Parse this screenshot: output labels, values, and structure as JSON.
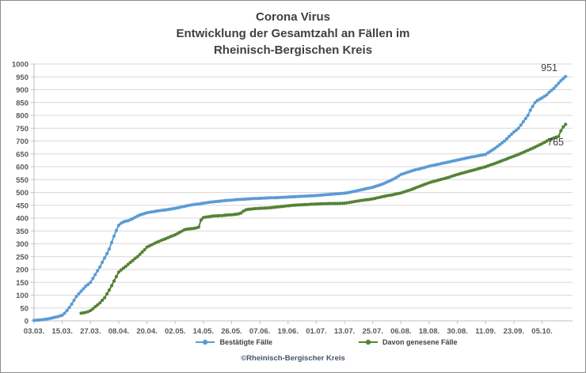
{
  "title": {
    "lines": [
      "Corona Virus",
      "Entwicklung der Gesamtzahl an Fällen im",
      "Rheinisch-Bergischen Kreis"
    ]
  },
  "footer": "©Rheinisch-Bergischer Kreis",
  "chart_data": {
    "type": "line",
    "title": "Corona Virus - Entwicklung der Gesamtzahl an Fällen im Rheinisch-Bergischen Kreis",
    "xlabel": "",
    "ylabel": "",
    "grid": "horizontal",
    "legend_position": "bottom",
    "y_axis": {
      "min": 0,
      "max": 1000,
      "step": 50
    },
    "x_tick_labels": [
      "03.03.",
      "15.03.",
      "27.03.",
      "08.04.",
      "20.04.",
      "02.05.",
      "14.05.",
      "26.05.",
      "07.06.",
      "19.06.",
      "01.07.",
      "13.07.",
      "25.07.",
      "06.08.",
      "18.08.",
      "30.08.",
      "11.09.",
      "23.09.",
      "05.10."
    ],
    "x_days_per_tick": 12,
    "series": [
      {
        "name": "Bestätigte Fälle",
        "color": "#5b9bd5",
        "end_label": "951",
        "points": [
          [
            0,
            2
          ],
          [
            2,
            3
          ],
          [
            4,
            5
          ],
          [
            6,
            8
          ],
          [
            8,
            12
          ],
          [
            10,
            16
          ],
          [
            12,
            22
          ],
          [
            13,
            30
          ],
          [
            14,
            40
          ],
          [
            15,
            52
          ],
          [
            16,
            65
          ],
          [
            17,
            80
          ],
          [
            18,
            95
          ],
          [
            19,
            105
          ],
          [
            20,
            115
          ],
          [
            21,
            125
          ],
          [
            22,
            135
          ],
          [
            23,
            142
          ],
          [
            24,
            150
          ],
          [
            25,
            165
          ],
          [
            26,
            180
          ],
          [
            27,
            195
          ],
          [
            28,
            210
          ],
          [
            29,
            228
          ],
          [
            30,
            245
          ],
          [
            31,
            262
          ],
          [
            32,
            280
          ],
          [
            33,
            305
          ],
          [
            34,
            330
          ],
          [
            35,
            352
          ],
          [
            36,
            372
          ],
          [
            37,
            380
          ],
          [
            38,
            385
          ],
          [
            39,
            388
          ],
          [
            40,
            390
          ],
          [
            41,
            394
          ],
          [
            42,
            398
          ],
          [
            43,
            403
          ],
          [
            44,
            408
          ],
          [
            45,
            412
          ],
          [
            46,
            415
          ],
          [
            47,
            418
          ],
          [
            48,
            421
          ],
          [
            50,
            424
          ],
          [
            52,
            427
          ],
          [
            54,
            430
          ],
          [
            56,
            432
          ],
          [
            58,
            435
          ],
          [
            60,
            438
          ],
          [
            62,
            442
          ],
          [
            64,
            446
          ],
          [
            66,
            450
          ],
          [
            68,
            453
          ],
          [
            70,
            455
          ],
          [
            72,
            458
          ],
          [
            74,
            461
          ],
          [
            76,
            463
          ],
          [
            78,
            465
          ],
          [
            80,
            467
          ],
          [
            82,
            469
          ],
          [
            84,
            470
          ],
          [
            86,
            472
          ],
          [
            88,
            473
          ],
          [
            90,
            474
          ],
          [
            93,
            476
          ],
          [
            96,
            477
          ],
          [
            100,
            479
          ],
          [
            104,
            480
          ],
          [
            108,
            482
          ],
          [
            112,
            484
          ],
          [
            116,
            486
          ],
          [
            120,
            488
          ],
          [
            124,
            491
          ],
          [
            128,
            494
          ],
          [
            132,
            497
          ],
          [
            134,
            500
          ],
          [
            136,
            504
          ],
          [
            138,
            508
          ],
          [
            140,
            512
          ],
          [
            142,
            516
          ],
          [
            144,
            520
          ],
          [
            146,
            526
          ],
          [
            148,
            532
          ],
          [
            150,
            540
          ],
          [
            152,
            548
          ],
          [
            154,
            558
          ],
          [
            156,
            570
          ],
          [
            158,
            576
          ],
          [
            160,
            582
          ],
          [
            162,
            588
          ],
          [
            164,
            592
          ],
          [
            166,
            597
          ],
          [
            168,
            602
          ],
          [
            170,
            606
          ],
          [
            172,
            610
          ],
          [
            174,
            614
          ],
          [
            176,
            618
          ],
          [
            178,
            622
          ],
          [
            180,
            626
          ],
          [
            182,
            630
          ],
          [
            184,
            634
          ],
          [
            186,
            638
          ],
          [
            188,
            641
          ],
          [
            190,
            645
          ],
          [
            192,
            648
          ],
          [
            194,
            660
          ],
          [
            196,
            672
          ],
          [
            198,
            686
          ],
          [
            200,
            700
          ],
          [
            202,
            718
          ],
          [
            204,
            735
          ],
          [
            205,
            742
          ],
          [
            206,
            750
          ],
          [
            208,
            775
          ],
          [
            210,
            800
          ],
          [
            211,
            820
          ],
          [
            213,
            850
          ],
          [
            214,
            858
          ],
          [
            216,
            868
          ],
          [
            218,
            880
          ],
          [
            219,
            890
          ],
          [
            221,
            905
          ],
          [
            222,
            915
          ],
          [
            223,
            925
          ],
          [
            224,
            935
          ],
          [
            225,
            943
          ],
          [
            226,
            951
          ]
        ]
      },
      {
        "name": "Davon genesene Fälle",
        "color": "#548235",
        "end_label": "765",
        "points": [
          [
            20,
            30
          ],
          [
            21,
            31
          ],
          [
            22,
            33
          ],
          [
            23,
            36
          ],
          [
            24,
            40
          ],
          [
            25,
            47
          ],
          [
            26,
            55
          ],
          [
            27,
            62
          ],
          [
            28,
            70
          ],
          [
            29,
            80
          ],
          [
            30,
            90
          ],
          [
            31,
            105
          ],
          [
            32,
            120
          ],
          [
            33,
            137
          ],
          [
            34,
            155
          ],
          [
            35,
            172
          ],
          [
            36,
            190
          ],
          [
            37,
            198
          ],
          [
            38,
            205
          ],
          [
            39,
            212
          ],
          [
            40,
            220
          ],
          [
            41,
            228
          ],
          [
            42,
            235
          ],
          [
            43,
            243
          ],
          [
            44,
            250
          ],
          [
            45,
            259
          ],
          [
            46,
            268
          ],
          [
            47,
            277
          ],
          [
            48,
            287
          ],
          [
            50,
            296
          ],
          [
            52,
            305
          ],
          [
            54,
            313
          ],
          [
            56,
            320
          ],
          [
            58,
            328
          ],
          [
            60,
            335
          ],
          [
            61,
            340
          ],
          [
            62,
            345
          ],
          [
            63,
            350
          ],
          [
            64,
            355
          ],
          [
            65,
            357
          ],
          [
            66,
            358
          ],
          [
            67,
            359
          ],
          [
            68,
            360
          ],
          [
            69,
            362
          ],
          [
            70,
            365
          ],
          [
            71,
            393
          ],
          [
            72,
            402
          ],
          [
            73,
            404
          ],
          [
            74,
            405
          ],
          [
            76,
            408
          ],
          [
            78,
            409
          ],
          [
            80,
            410
          ],
          [
            82,
            412
          ],
          [
            84,
            413
          ],
          [
            85,
            414
          ],
          [
            86,
            415
          ],
          [
            87,
            417
          ],
          [
            88,
            420
          ],
          [
            89,
            427
          ],
          [
            90,
            432
          ],
          [
            91,
            434
          ],
          [
            92,
            435
          ],
          [
            94,
            437
          ],
          [
            96,
            438
          ],
          [
            98,
            439
          ],
          [
            100,
            440
          ],
          [
            102,
            442
          ],
          [
            104,
            444
          ],
          [
            106,
            446
          ],
          [
            108,
            448
          ],
          [
            110,
            450
          ],
          [
            112,
            451
          ],
          [
            114,
            452
          ],
          [
            116,
            453
          ],
          [
            118,
            454
          ],
          [
            120,
            455
          ],
          [
            123,
            456
          ],
          [
            126,
            457
          ],
          [
            129,
            457
          ],
          [
            132,
            458
          ],
          [
            134,
            461
          ],
          [
            136,
            464
          ],
          [
            138,
            467
          ],
          [
            140,
            470
          ],
          [
            142,
            472
          ],
          [
            144,
            475
          ],
          [
            146,
            479
          ],
          [
            148,
            483
          ],
          [
            150,
            487
          ],
          [
            152,
            490
          ],
          [
            154,
            494
          ],
          [
            156,
            498
          ],
          [
            158,
            504
          ],
          [
            160,
            510
          ],
          [
            162,
            517
          ],
          [
            164,
            524
          ],
          [
            166,
            531
          ],
          [
            168,
            538
          ],
          [
            170,
            543
          ],
          [
            172,
            548
          ],
          [
            174,
            553
          ],
          [
            176,
            558
          ],
          [
            178,
            564
          ],
          [
            180,
            570
          ],
          [
            182,
            575
          ],
          [
            184,
            580
          ],
          [
            186,
            585
          ],
          [
            188,
            590
          ],
          [
            190,
            595
          ],
          [
            192,
            600
          ],
          [
            194,
            607
          ],
          [
            196,
            613
          ],
          [
            198,
            620
          ],
          [
            200,
            627
          ],
          [
            202,
            634
          ],
          [
            204,
            641
          ],
          [
            206,
            648
          ],
          [
            208,
            656
          ],
          [
            210,
            664
          ],
          [
            212,
            672
          ],
          [
            214,
            681
          ],
          [
            216,
            690
          ],
          [
            218,
            700
          ],
          [
            220,
            708
          ],
          [
            221,
            712
          ],
          [
            222,
            715
          ],
          [
            223,
            718
          ],
          [
            224,
            740
          ],
          [
            225,
            755
          ],
          [
            226,
            765
          ]
        ]
      }
    ]
  }
}
